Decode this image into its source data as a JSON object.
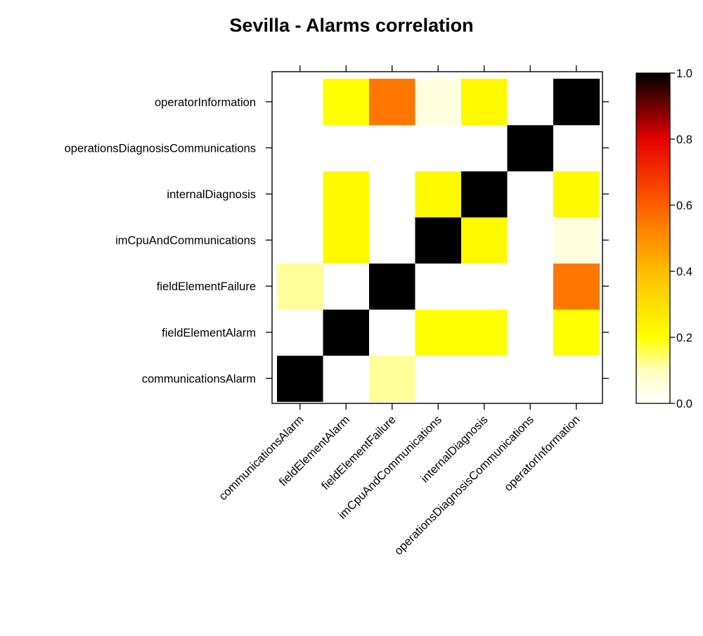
{
  "chart_data": {
    "type": "heatmap",
    "title": "Sevilla - Alarms correlation",
    "x_categories": [
      "communicationsAlarm",
      "fieldElementAlarm",
      "fieldElementFailure",
      "imCpuAndCommunications",
      "internalDiagnosis",
      "operationsDiagnosisCommunications",
      "operatorInformation"
    ],
    "y_categories": [
      "communicationsAlarm",
      "fieldElementAlarm",
      "fieldElementFailure",
      "imCpuAndCommunications",
      "internalDiagnosis",
      "operationsDiagnosisCommunications",
      "operatorInformation"
    ],
    "values": [
      [
        1.0,
        0.0,
        0.12,
        0.0,
        0.0,
        0.0,
        0.0
      ],
      [
        0.0,
        1.0,
        0.0,
        0.22,
        0.22,
        0.0,
        0.2
      ],
      [
        0.12,
        0.0,
        1.0,
        0.0,
        0.0,
        0.0,
        0.55
      ],
      [
        0.0,
        0.2,
        0.0,
        1.0,
        0.22,
        0.0,
        0.05
      ],
      [
        0.0,
        0.2,
        0.0,
        0.22,
        1.0,
        0.0,
        0.22
      ],
      [
        0.0,
        0.0,
        0.0,
        0.0,
        0.0,
        1.0,
        0.0
      ],
      [
        0.0,
        0.2,
        0.55,
        0.05,
        0.22,
        0.0,
        1.0
      ]
    ],
    "colorbar": {
      "range": [
        0,
        1
      ],
      "ticks": [
        "0.0",
        "0.2",
        "0.4",
        "0.6",
        "0.8",
        "1.0"
      ],
      "colormap": "heat (white-yellow-red-black)"
    },
    "xlabel": "",
    "ylabel": "",
    "grid": false,
    "legend_position": "right"
  }
}
